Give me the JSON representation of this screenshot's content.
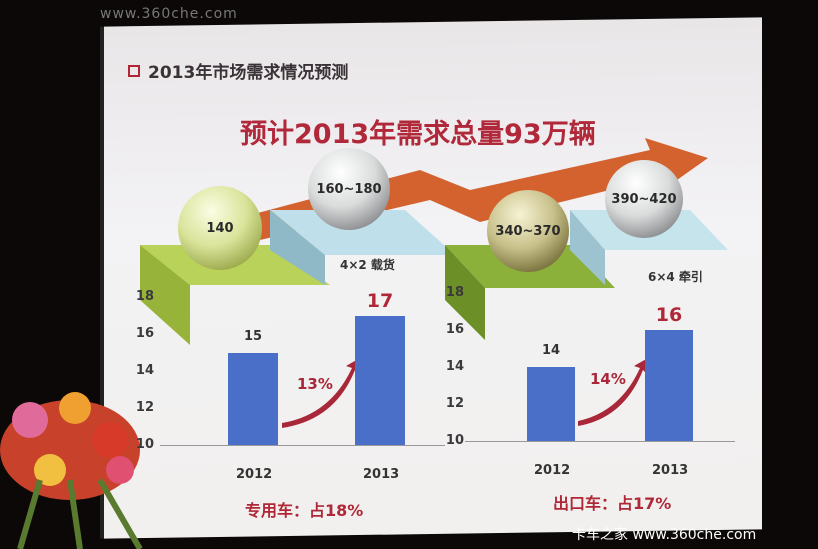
{
  "watermark_top": "www.360che.com",
  "watermark_bottom": "卡车之家 www.360che.com",
  "slide": {
    "section_title": "2013年市场需求情况预测",
    "headline": "预计2013年需求总量93万辆",
    "spheres": [
      "140",
      "160~180",
      "340~370",
      "390~420"
    ]
  },
  "colors": {
    "bar": "#4a6fc8",
    "accent_red": "#b02838",
    "arrow_orange": "#d0561e"
  },
  "chart_data": [
    {
      "type": "bar",
      "label": "4×2 载货",
      "categories": [
        "2012",
        "2013"
      ],
      "values": [
        15,
        17
      ],
      "value_labels": [
        "15",
        "17"
      ],
      "growth": "13%",
      "share": "专用车：占18%",
      "ylim": [
        10,
        18
      ],
      "yticks": [
        "18",
        "16",
        "14",
        "12",
        "10"
      ],
      "grid": false
    },
    {
      "type": "bar",
      "label": "6×4 牵引",
      "categories": [
        "2012",
        "2013"
      ],
      "values": [
        14,
        16
      ],
      "value_labels": [
        "14",
        "16"
      ],
      "growth": "14%",
      "share": "出口车：占17%",
      "ylim": [
        10,
        18
      ],
      "yticks": [
        "18",
        "16",
        "14",
        "12",
        "10"
      ],
      "grid": false
    }
  ]
}
